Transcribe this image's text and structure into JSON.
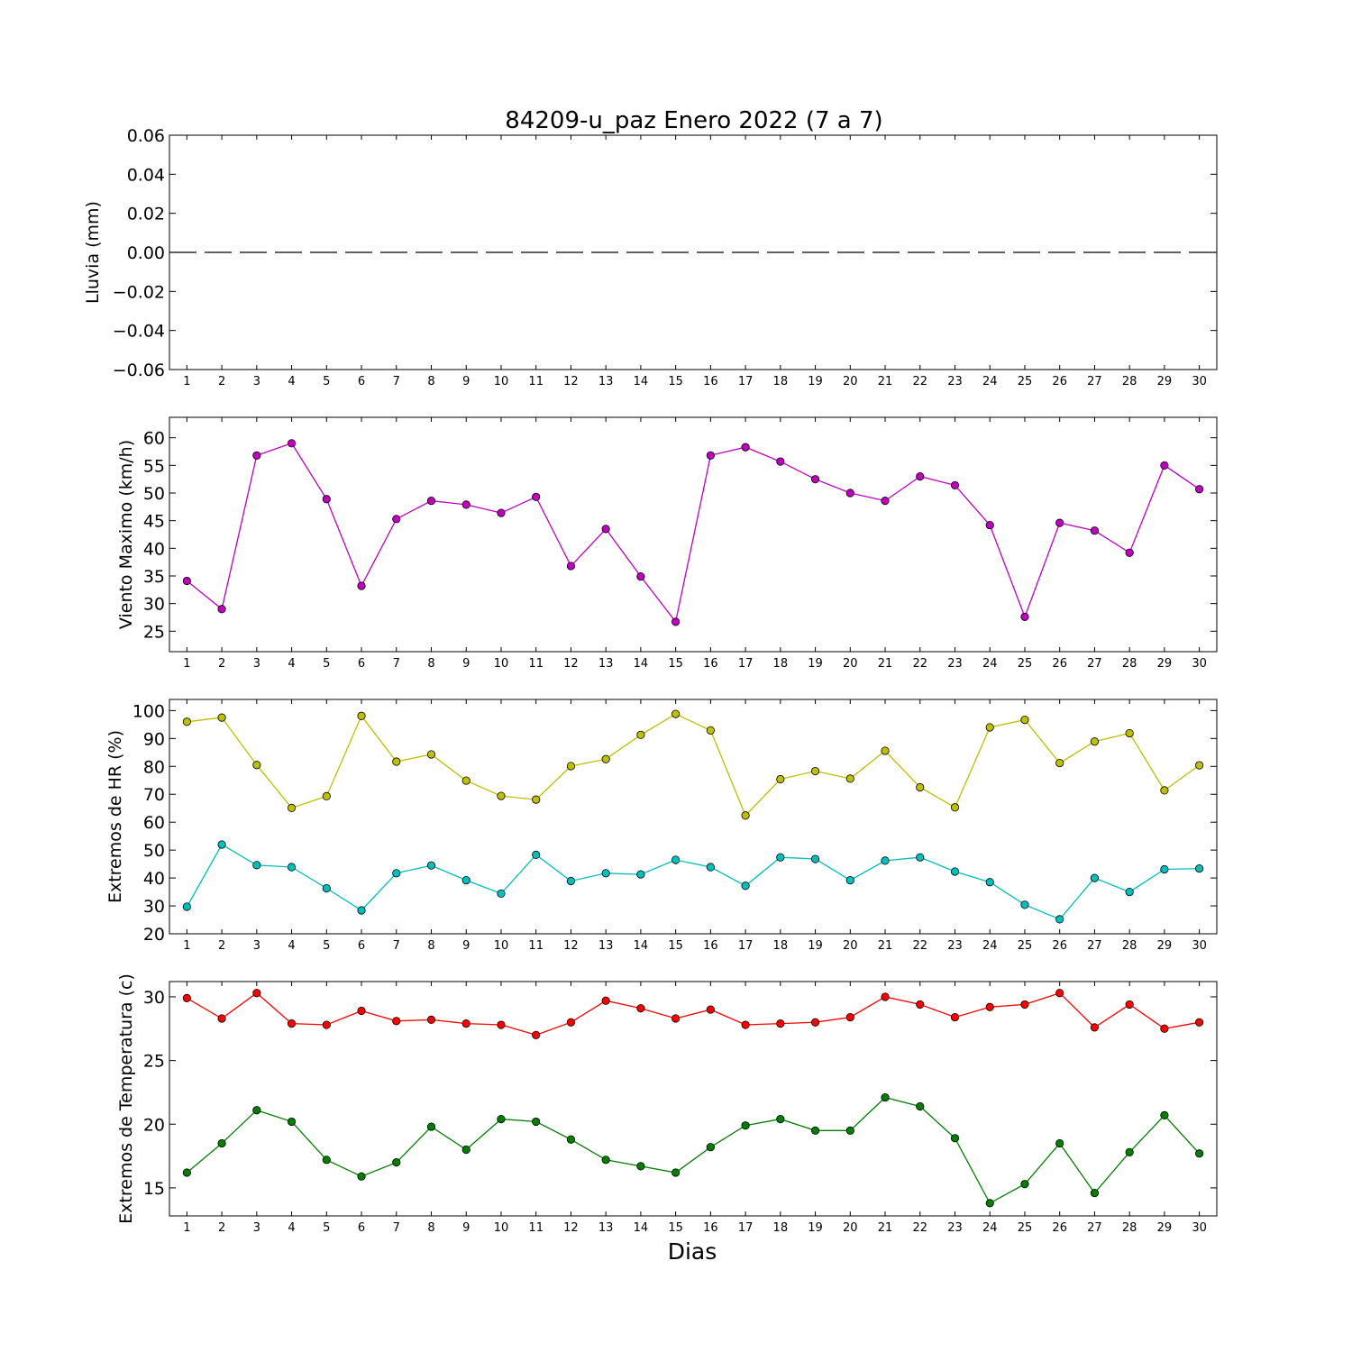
{
  "figure": {
    "title": "84209-u_paz Enero 2022  (7 a 7)",
    "xlabel": "Dias"
  },
  "chart_data": [
    {
      "type": "line",
      "ylabel": "Lluvia (mm)",
      "x": [
        1,
        2,
        3,
        4,
        5,
        6,
        7,
        8,
        9,
        10,
        11,
        12,
        13,
        14,
        15,
        16,
        17,
        18,
        19,
        20,
        21,
        22,
        23,
        24,
        25,
        26,
        27,
        28,
        29,
        30
      ],
      "xlim": [
        0.5,
        30.5
      ],
      "ylim": [
        -0.06,
        0.06
      ],
      "yticks": [
        -0.06,
        -0.04,
        -0.02,
        0.0,
        0.02,
        0.04,
        0.06
      ],
      "ytick_labels": [
        "−0.06",
        "−0.04",
        "−0.02",
        "0.00",
        "0.02",
        "0.04",
        "0.06"
      ],
      "series": [
        {
          "color": "#000000",
          "style": "dashed",
          "markers": false,
          "values": [
            0,
            0,
            0,
            0,
            0,
            0,
            0,
            0,
            0,
            0,
            0,
            0,
            0,
            0,
            0,
            0,
            0,
            0,
            0,
            0,
            0,
            0,
            0,
            0,
            0,
            0,
            0,
            0,
            0,
            0
          ]
        }
      ]
    },
    {
      "type": "line",
      "ylabel": "Viento Maximo (km/h)",
      "x": [
        1,
        2,
        3,
        4,
        5,
        6,
        7,
        8,
        9,
        10,
        11,
        12,
        13,
        14,
        15,
        16,
        17,
        18,
        19,
        20,
        21,
        22,
        23,
        24,
        25,
        26,
        27,
        28,
        29,
        30
      ],
      "xlim": [
        0.5,
        30.5
      ],
      "ylim": [
        21.3,
        63.7
      ],
      "yticks": [
        25,
        30,
        35,
        40,
        45,
        50,
        55,
        60
      ],
      "ytick_labels": [
        "25",
        "30",
        "35",
        "40",
        "45",
        "50",
        "55",
        "60"
      ],
      "series": [
        {
          "color": "#bf00bf",
          "style": "solid",
          "markers": true,
          "values": [
            34.1,
            29.0,
            56.8,
            59.0,
            48.9,
            33.2,
            45.3,
            48.6,
            47.9,
            46.4,
            49.3,
            36.8,
            43.5,
            34.9,
            26.7,
            56.8,
            58.3,
            55.7,
            52.5,
            50.0,
            48.6,
            53.0,
            51.4,
            44.2,
            27.6,
            44.6,
            43.2,
            39.2,
            55.0,
            50.7
          ]
        }
      ]
    },
    {
      "type": "line",
      "ylabel": "Extremos de HR (%)",
      "x": [
        1,
        2,
        3,
        4,
        5,
        6,
        7,
        8,
        9,
        10,
        11,
        12,
        13,
        14,
        15,
        16,
        17,
        18,
        19,
        20,
        21,
        22,
        23,
        24,
        25,
        26,
        27,
        28,
        29,
        30
      ],
      "xlim": [
        0.5,
        30.5
      ],
      "ylim": [
        20,
        104
      ],
      "yticks": [
        20,
        30,
        40,
        50,
        60,
        70,
        80,
        90,
        100
      ],
      "ytick_labels": [
        "20",
        "30",
        "40",
        "50",
        "60",
        "70",
        "80",
        "90",
        "100"
      ],
      "series": [
        {
          "color": "#bfbf00",
          "style": "solid",
          "markers": true,
          "values": [
            96.0,
            97.5,
            80.5,
            65.1,
            69.3,
            98.1,
            81.7,
            84.3,
            74.9,
            69.4,
            68.1,
            80.1,
            82.6,
            91.3,
            98.8,
            92.9,
            62.4,
            75.4,
            78.3,
            75.6,
            85.6,
            72.5,
            65.3,
            94.0,
            96.7,
            81.2,
            88.9,
            91.9,
            71.4,
            80.4
          ]
        },
        {
          "color": "#00bfbf",
          "style": "solid",
          "markers": true,
          "values": [
            29.7,
            52.0,
            44.6,
            43.9,
            36.3,
            28.4,
            41.7,
            44.5,
            39.2,
            34.4,
            48.3,
            38.9,
            41.7,
            41.3,
            46.5,
            43.9,
            37.2,
            47.4,
            46.8,
            39.2,
            46.2,
            47.4,
            42.3,
            38.5,
            30.4,
            25.2,
            40.0,
            35.0,
            43.1,
            43.4
          ]
        }
      ]
    },
    {
      "type": "line",
      "ylabel": "Extremos de Temperatura (c)",
      "x": [
        1,
        2,
        3,
        4,
        5,
        6,
        7,
        8,
        9,
        10,
        11,
        12,
        13,
        14,
        15,
        16,
        17,
        18,
        19,
        20,
        21,
        22,
        23,
        24,
        25,
        26,
        27,
        28,
        29,
        30
      ],
      "xlim": [
        0.5,
        30.5
      ],
      "ylim": [
        12.8,
        31.2
      ],
      "yticks": [
        15,
        20,
        25,
        30
      ],
      "ytick_labels": [
        "15",
        "20",
        "25",
        "30"
      ],
      "series": [
        {
          "color": "#ff0000",
          "style": "solid",
          "markers": true,
          "values": [
            29.9,
            28.3,
            30.3,
            27.9,
            27.8,
            28.9,
            28.1,
            28.2,
            27.9,
            27.8,
            27.0,
            28.0,
            29.7,
            29.1,
            28.3,
            29.0,
            27.8,
            27.9,
            28.0,
            28.4,
            30.0,
            29.4,
            28.4,
            29.2,
            29.4,
            30.3,
            27.6,
            29.4,
            27.5,
            28.0
          ]
        },
        {
          "color": "#007f00",
          "style": "solid",
          "markers": true,
          "values": [
            16.2,
            18.5,
            21.1,
            20.2,
            17.2,
            15.9,
            17.0,
            19.8,
            18.0,
            20.4,
            20.2,
            18.8,
            17.2,
            16.7,
            16.2,
            18.2,
            19.9,
            20.4,
            19.5,
            19.5,
            22.1,
            21.4,
            18.9,
            13.8,
            15.3,
            18.5,
            14.6,
            17.8,
            20.7,
            17.7
          ]
        }
      ]
    }
  ]
}
